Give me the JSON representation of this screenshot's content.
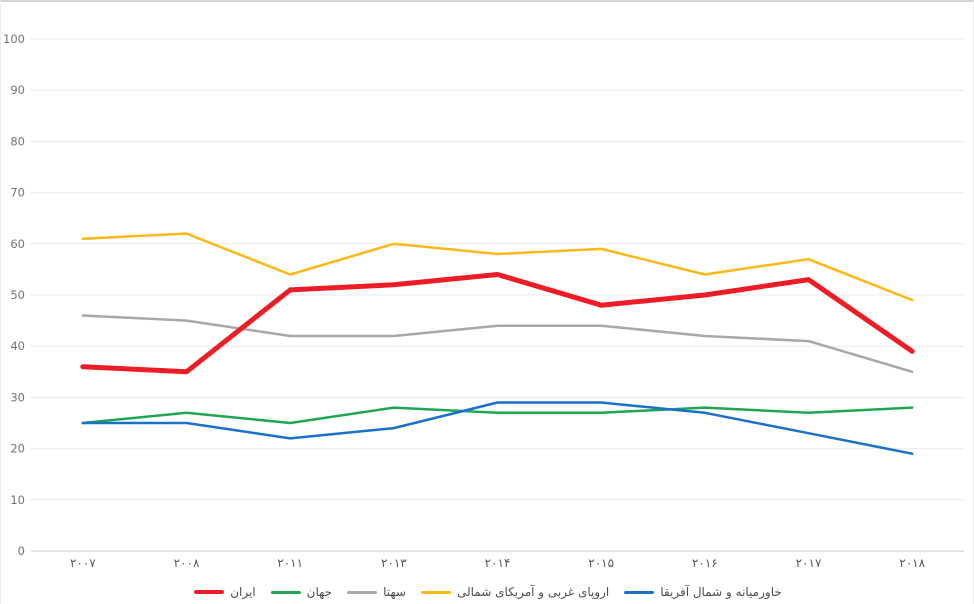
{
  "chart_data": {
    "type": "line",
    "title": "",
    "categories": [
      "۲۰۰۷",
      "۲۰۰۸",
      "۲۰۱۱",
      "۲۰۱۳",
      "۲۰۱۴",
      "۲۰۱۵",
      "۲۰۱۶",
      "۲۰۱۷",
      "۲۰۱۸"
    ],
    "yticks": [
      0,
      10,
      20,
      30,
      40,
      50,
      60,
      70,
      80,
      90,
      100
    ],
    "ylim": [
      0,
      100
    ],
    "grid": true,
    "legend_position": "bottom",
    "axis_label_color": "#757575",
    "gridline_color": "#e9e9e9",
    "baseline_color": "#c9c9c9",
    "series": [
      {
        "name": "ایران",
        "slug": "iran",
        "color": "#ee1c25",
        "line_width": 5,
        "values": [
          36,
          35,
          51,
          52,
          54,
          48,
          50,
          53,
          39
        ]
      },
      {
        "name": "جهان",
        "slug": "world",
        "color": "#1fa653",
        "line_width": 2.5,
        "values": [
          25,
          27,
          25,
          28,
          27,
          27,
          28,
          27,
          28
        ]
      },
      {
        "name": "سهتا",
        "slug": "sehta",
        "color": "#a8a8a8",
        "line_width": 2.5,
        "values": [
          46,
          45,
          42,
          42,
          44,
          44,
          42,
          41,
          35
        ]
      },
      {
        "name": "اروپای غربی و آمریکای شمالی",
        "slug": "western-europe-north-america",
        "color": "#fcb817",
        "line_width": 2.5,
        "values": [
          61,
          62,
          54,
          60,
          58,
          59,
          54,
          57,
          49
        ]
      },
      {
        "name": "خاورمیانه و شمال آفریقا",
        "slug": "middle-east-north-africa",
        "color": "#1c70c8",
        "line_width": 2.5,
        "values": [
          25,
          25,
          22,
          24,
          29,
          29,
          27,
          23,
          19
        ]
      }
    ]
  }
}
